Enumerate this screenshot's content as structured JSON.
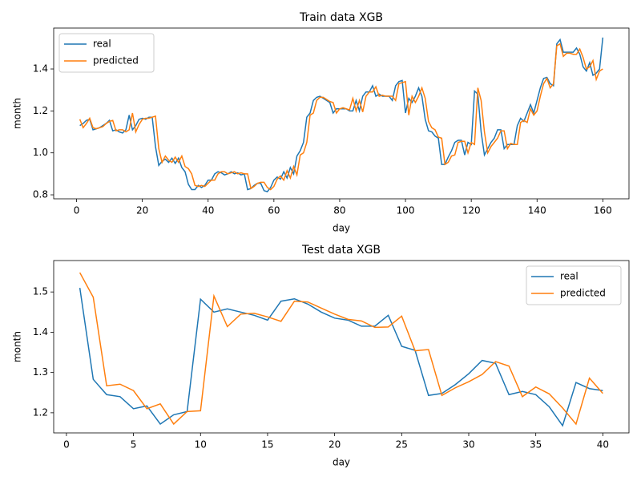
{
  "chart_data": [
    {
      "type": "line",
      "title": "Train data XGB",
      "xlabel": "day",
      "ylabel": "month",
      "legend": "upper left",
      "x": [
        1,
        2,
        3,
        4,
        5,
        6,
        7,
        8,
        9,
        10,
        11,
        12,
        13,
        14,
        15,
        16,
        17,
        18,
        19,
        20,
        21,
        22,
        23,
        24,
        25,
        26,
        27,
        28,
        29,
        30,
        31,
        32,
        33,
        34,
        35,
        36,
        37,
        38,
        39,
        40,
        41,
        42,
        43,
        44,
        45,
        46,
        47,
        48,
        49,
        50,
        51,
        52,
        53,
        54,
        55,
        56,
        57,
        58,
        59,
        60,
        61,
        62,
        63,
        64,
        65,
        66,
        67,
        68,
        69,
        70,
        71,
        72,
        73,
        74,
        75,
        76,
        77,
        78,
        79,
        80,
        81,
        82,
        83,
        84,
        85,
        86,
        87,
        88,
        89,
        90,
        91,
        92,
        93,
        94,
        95,
        96,
        97,
        98,
        99,
        100,
        101,
        102,
        103,
        104,
        105,
        106,
        107,
        108,
        109,
        110,
        111,
        112,
        113,
        114,
        115,
        116,
        117,
        118,
        119,
        120,
        121,
        122,
        123,
        124,
        125,
        126,
        127,
        128,
        129,
        130,
        131,
        132,
        133,
        134,
        135,
        136,
        137,
        138,
        139,
        140,
        141,
        142,
        143,
        144,
        145,
        146,
        147,
        148,
        149,
        150,
        151,
        152,
        153,
        154,
        155,
        156,
        157,
        158,
        159,
        160
      ],
      "series": [
        {
          "name": "real",
          "color": "#1f77b4",
          "values": [
            1.13,
            1.14,
            1.155,
            1.16,
            1.11,
            1.115,
            1.12,
            1.13,
            1.14,
            1.155,
            1.105,
            1.11,
            1.1,
            1.095,
            1.11,
            1.18,
            1.11,
            1.13,
            1.16,
            1.165,
            1.16,
            1.17,
            1.17,
            1.03,
            0.94,
            0.96,
            0.97,
            0.955,
            0.975,
            0.95,
            0.975,
            0.93,
            0.91,
            0.85,
            0.825,
            0.825,
            0.845,
            0.835,
            0.845,
            0.87,
            0.87,
            0.9,
            0.91,
            0.905,
            0.895,
            0.9,
            0.91,
            0.9,
            0.905,
            0.895,
            0.9,
            0.825,
            0.83,
            0.845,
            0.855,
            0.855,
            0.82,
            0.815,
            0.835,
            0.87,
            0.885,
            0.875,
            0.91,
            0.88,
            0.93,
            0.9,
            0.985,
            1.01,
            1.05,
            1.17,
            1.19,
            1.25,
            1.265,
            1.27,
            1.26,
            1.25,
            1.24,
            1.19,
            1.21,
            1.21,
            1.21,
            1.21,
            1.2,
            1.2,
            1.25,
            1.2,
            1.27,
            1.29,
            1.29,
            1.32,
            1.27,
            1.28,
            1.27,
            1.27,
            1.27,
            1.25,
            1.32,
            1.34,
            1.345,
            1.19,
            1.26,
            1.24,
            1.27,
            1.31,
            1.27,
            1.16,
            1.105,
            1.1,
            1.08,
            1.07,
            0.945,
            0.945,
            0.98,
            1.01,
            1.05,
            1.06,
            1.06,
            0.99,
            1.05,
            1.04,
            1.295,
            1.28,
            1.1,
            0.99,
            1.02,
            1.05,
            1.07,
            1.11,
            1.11,
            1.02,
            1.04,
            1.04,
            1.04,
            1.13,
            1.165,
            1.15,
            1.19,
            1.23,
            1.19,
            1.25,
            1.31,
            1.355,
            1.36,
            1.33,
            1.32,
            1.52,
            1.54,
            1.48,
            1.48,
            1.48,
            1.48,
            1.5,
            1.47,
            1.41,
            1.39,
            1.43,
            1.37,
            1.38,
            1.4,
            1.55
          ]
        },
        {
          "name": "predicted",
          "color": "#ff7f0e",
          "values": [
            1.16,
            1.12,
            1.14,
            1.165,
            1.12,
            1.115,
            1.12,
            1.125,
            1.14,
            1.15,
            1.155,
            1.105,
            1.11,
            1.11,
            1.1,
            1.11,
            1.19,
            1.1,
            1.135,
            1.16,
            1.165,
            1.165,
            1.17,
            1.175,
            1.02,
            0.955,
            0.985,
            0.965,
            0.955,
            0.98,
            0.955,
            0.985,
            0.935,
            0.925,
            0.9,
            0.845,
            0.84,
            0.845,
            0.84,
            0.855,
            0.87,
            0.87,
            0.9,
            0.91,
            0.91,
            0.9,
            0.905,
            0.91,
            0.9,
            0.905,
            0.9,
            0.9,
            0.83,
            0.84,
            0.855,
            0.86,
            0.86,
            0.835,
            0.825,
            0.84,
            0.875,
            0.89,
            0.87,
            0.915,
            0.88,
            0.935,
            0.895,
            0.99,
            1.0,
            1.05,
            1.18,
            1.19,
            1.25,
            1.265,
            1.265,
            1.255,
            1.245,
            1.24,
            1.19,
            1.21,
            1.215,
            1.21,
            1.205,
            1.26,
            1.2,
            1.25,
            1.195,
            1.27,
            1.29,
            1.29,
            1.315,
            1.27,
            1.275,
            1.27,
            1.27,
            1.27,
            1.25,
            1.33,
            1.335,
            1.34,
            1.18,
            1.27,
            1.24,
            1.27,
            1.31,
            1.26,
            1.15,
            1.12,
            1.11,
            1.075,
            1.07,
            0.945,
            0.955,
            0.985,
            0.99,
            1.05,
            1.055,
            1.055,
            1.0,
            1.05,
            1.04,
            1.31,
            1.25,
            1.1,
            1.0,
            1.03,
            1.05,
            1.07,
            1.105,
            1.105,
            1.02,
            1.045,
            1.04,
            1.04,
            1.145,
            1.155,
            1.145,
            1.21,
            1.18,
            1.2,
            1.27,
            1.33,
            1.355,
            1.31,
            1.33,
            1.51,
            1.52,
            1.46,
            1.475,
            1.475,
            1.47,
            1.47,
            1.495,
            1.455,
            1.4,
            1.41,
            1.44,
            1.35,
            1.39,
            1.4
          ]
        }
      ],
      "xlim": [
        -6.95,
        167.95
      ],
      "ylim": [
        0.781,
        1.595
      ],
      "xticks": [
        0,
        20,
        40,
        60,
        80,
        100,
        120,
        140,
        160
      ],
      "yticks": [
        0.8,
        {
          "value": 1.0,
          "label": "1.0"
        },
        1.2,
        1.4
      ]
    },
    {
      "type": "line",
      "title": "Test data XGB",
      "xlabel": "day",
      "ylabel": "month",
      "legend": "upper right",
      "x": [
        1,
        2,
        3,
        4,
        5,
        6,
        7,
        8,
        9,
        10,
        11,
        12,
        13,
        14,
        15,
        16,
        17,
        18,
        19,
        20,
        21,
        22,
        23,
        24,
        25,
        26,
        27,
        28,
        29,
        30,
        31,
        32,
        33,
        34,
        35,
        36,
        37,
        38,
        39,
        40
      ],
      "series": [
        {
          "name": "real",
          "color": "#1f77b4",
          "values": [
            1.51,
            1.283,
            1.245,
            1.24,
            1.21,
            1.217,
            1.172,
            1.195,
            1.203,
            1.482,
            1.45,
            1.458,
            1.45,
            1.442,
            1.43,
            1.477,
            1.483,
            1.47,
            1.45,
            1.435,
            1.43,
            1.415,
            1.415,
            1.442,
            1.365,
            1.355,
            1.243,
            1.248,
            1.27,
            1.297,
            1.33,
            1.323,
            1.245,
            1.253,
            1.245,
            1.215,
            1.168,
            1.275,
            1.26,
            1.255
          ]
        },
        {
          "name": "predicted",
          "color": "#ff7f0e",
          "values": [
            1.548,
            1.487,
            1.267,
            1.271,
            1.255,
            1.21,
            1.222,
            1.172,
            1.203,
            1.205,
            1.49,
            1.414,
            1.445,
            1.447,
            1.438,
            1.427,
            1.477,
            1.475,
            1.46,
            1.445,
            1.432,
            1.428,
            1.412,
            1.413,
            1.44,
            1.354,
            1.357,
            1.243,
            1.262,
            1.277,
            1.295,
            1.327,
            1.316,
            1.24,
            1.264,
            1.247,
            1.212,
            1.172,
            1.286,
            1.248
          ]
        }
      ],
      "xlim": [
        -0.95,
        41.95
      ],
      "ylim": [
        1.15,
        1.578
      ],
      "xticks": [
        0,
        5,
        10,
        15,
        20,
        25,
        30,
        35,
        40
      ],
      "yticks": [
        1.2,
        1.3,
        1.4,
        1.5
      ]
    }
  ]
}
